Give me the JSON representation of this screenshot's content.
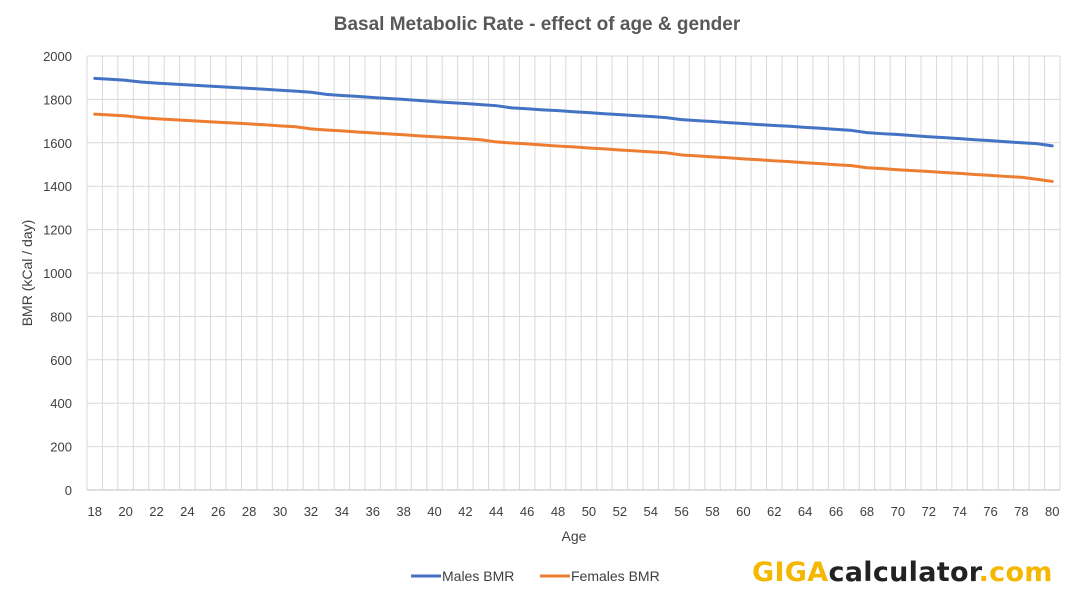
{
  "chart_data": {
    "type": "line",
    "title": "Basal Metabolic Rate - effect of age & gender",
    "xlabel": "Age",
    "ylabel": "BMR (kCal / day)",
    "xlim": [
      18,
      80
    ],
    "ylim": [
      0,
      2000
    ],
    "y_ticks": [
      0,
      200,
      400,
      600,
      800,
      1000,
      1200,
      1400,
      1600,
      1800,
      2000
    ],
    "x_ticks": [
      18,
      20,
      22,
      24,
      26,
      28,
      30,
      32,
      34,
      36,
      38,
      40,
      42,
      44,
      46,
      48,
      50,
      52,
      54,
      56,
      58,
      60,
      62,
      64,
      66,
      68,
      70,
      72,
      74,
      76,
      78,
      80
    ],
    "grid": true,
    "legend_position": "bottom",
    "x": [
      18,
      19,
      20,
      21,
      22,
      23,
      24,
      25,
      26,
      27,
      28,
      29,
      30,
      31,
      32,
      33,
      34,
      35,
      36,
      37,
      38,
      39,
      40,
      41,
      42,
      43,
      44,
      45,
      46,
      47,
      48,
      49,
      50,
      51,
      52,
      53,
      54,
      55,
      56,
      57,
      58,
      59,
      60,
      61,
      62,
      63,
      64,
      65,
      66,
      67,
      68,
      69,
      70,
      71,
      72,
      73,
      74,
      75,
      76,
      77,
      78,
      79,
      80
    ],
    "series": [
      {
        "name": "Males BMR",
        "color": "#4472c4",
        "values": [
          1897,
          1893,
          1888,
          1880,
          1875,
          1871,
          1867,
          1863,
          1859,
          1855,
          1851,
          1847,
          1842,
          1838,
          1833,
          1823,
          1818,
          1814,
          1809,
          1804,
          1800,
          1795,
          1790,
          1785,
          1781,
          1776,
          1771,
          1761,
          1757,
          1752,
          1748,
          1743,
          1739,
          1734,
          1730,
          1725,
          1721,
          1716,
          1707,
          1702,
          1698,
          1693,
          1689,
          1684,
          1680,
          1676,
          1671,
          1667,
          1662,
          1657,
          1647,
          1642,
          1638,
          1633,
          1628,
          1624,
          1619,
          1614,
          1610,
          1605,
          1600,
          1596,
          1586
        ]
      },
      {
        "name": "Females BMR",
        "color": "#ed7d31",
        "values": [
          1732,
          1728,
          1724,
          1716,
          1711,
          1707,
          1703,
          1699,
          1695,
          1691,
          1687,
          1683,
          1678,
          1674,
          1664,
          1659,
          1655,
          1650,
          1646,
          1641,
          1637,
          1632,
          1628,
          1624,
          1619,
          1614,
          1604,
          1599,
          1595,
          1590,
          1585,
          1581,
          1576,
          1572,
          1567,
          1563,
          1558,
          1554,
          1544,
          1540,
          1535,
          1531,
          1526,
          1522,
          1517,
          1513,
          1508,
          1504,
          1499,
          1495,
          1485,
          1481,
          1476,
          1472,
          1468,
          1463,
          1459,
          1454,
          1450,
          1445,
          1441,
          1432,
          1422
        ]
      }
    ]
  },
  "logo": {
    "part1": "GIGA",
    "part2": "calculator",
    "part3": ".com"
  }
}
